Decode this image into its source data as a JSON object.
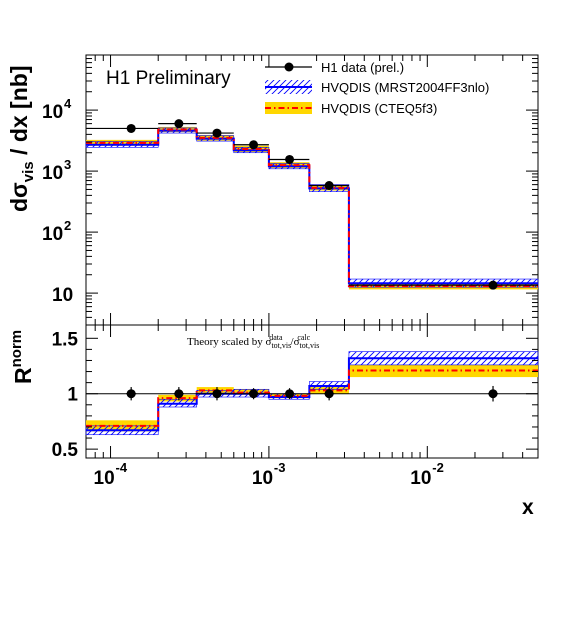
{
  "chart_data": [
    {
      "type": "line",
      "panel": "top",
      "title": "H1 Preliminary",
      "xlabel": "x",
      "ylabel": "dσ_vis / dx [nb]",
      "x_scale": "log",
      "y_scale": "log",
      "xlim": [
        7e-05,
        0.05
      ],
      "ylim": [
        3,
        80000
      ],
      "y_ticks": [
        {
          "value": 10,
          "base": "10",
          "exp": ""
        },
        {
          "value": 100,
          "base": "10",
          "exp": "2"
        },
        {
          "value": 1000,
          "base": "10",
          "exp": "3"
        },
        {
          "value": 10000,
          "base": "10",
          "exp": "4"
        }
      ],
      "bin_edges": [
        7e-05,
        0.0002,
        0.00035,
        0.0006,
        0.001,
        0.0018,
        0.0032,
        0.05
      ],
      "series": [
        {
          "name": "H1 data (prel.)",
          "style": "points",
          "x": [
            0.000135,
            0.00027,
            0.00047,
            0.0008,
            0.00135,
            0.0024,
            0.026
          ],
          "y": [
            5000,
            6000,
            4200,
            2700,
            1550,
            580,
            13.5
          ],
          "yerr": [
            250,
            300,
            210,
            140,
            80,
            30,
            0.8
          ]
        },
        {
          "name": "HVQDIS (MRST2004FF3nlo)",
          "style": "hatched-band",
          "color": "#0000ff",
          "values": [
            2700,
            4600,
            3400,
            2200,
            1200,
            520,
            14.5
          ],
          "band": [
            [
              2450,
              3050
            ],
            [
              4200,
              5100
            ],
            [
              3100,
              3800
            ],
            [
              2000,
              2450
            ],
            [
              1090,
              1330
            ],
            [
              460,
              600
            ],
            [
              12.5,
              17
            ]
          ]
        },
        {
          "name": "HVQDIS (CTEQ5f3)",
          "style": "filled-band",
          "color": "#ffd700",
          "line_color": "#ff0000",
          "values": [
            2900,
            4800,
            3500,
            2300,
            1250,
            530,
            13
          ],
          "band": [
            [
              2600,
              3250
            ],
            [
              4350,
              5300
            ],
            [
              3150,
              3900
            ],
            [
              2050,
              2600
            ],
            [
              1120,
              1400
            ],
            [
              480,
              600
            ],
            [
              11.5,
              14.5
            ]
          ]
        }
      ],
      "legend_position": "top-right"
    },
    {
      "type": "line",
      "panel": "bottom",
      "ylabel": "R norm",
      "annotation": "Theory scaled by σ data tot,vis / σ calc tot,vis",
      "x_scale": "log",
      "xlim": [
        7e-05,
        0.05
      ],
      "ylim": [
        0.42,
        1.62
      ],
      "y_ticks": [
        0.5,
        1,
        1.5
      ],
      "x_ticks": [
        {
          "value": 0.0001,
          "base": "10",
          "exp": "-4"
        },
        {
          "value": 0.001,
          "base": "10",
          "exp": "-3"
        },
        {
          "value": 0.01,
          "base": "10",
          "exp": "-2"
        }
      ],
      "reference_line": 1,
      "bin_edges": [
        7e-05,
        0.0002,
        0.00035,
        0.0006,
        0.001,
        0.0018,
        0.0032,
        0.05
      ],
      "series": [
        {
          "name": "H1 data (prel.)",
          "style": "points",
          "x": [
            0.000135,
            0.00027,
            0.00047,
            0.0008,
            0.00135,
            0.0024,
            0.026
          ],
          "y": [
            1.0,
            1.0,
            1.0,
            1.0,
            1.0,
            1.0,
            1.0
          ],
          "yerr": [
            0.06,
            0.06,
            0.06,
            0.05,
            0.05,
            0.06,
            0.07
          ]
        },
        {
          "name": "HVQDIS (MRST2004FF3nlo)",
          "style": "hatched-band",
          "color": "#0000ff",
          "values": [
            0.67,
            0.91,
            1.0,
            1.0,
            0.97,
            1.07,
            1.32
          ],
          "band": [
            [
              0.63,
              0.71
            ],
            [
              0.88,
              0.95
            ],
            [
              0.97,
              1.03
            ],
            [
              0.97,
              1.04
            ],
            [
              0.95,
              1.0
            ],
            [
              1.04,
              1.11
            ],
            [
              1.26,
              1.38
            ]
          ]
        },
        {
          "name": "HVQDIS (CTEQ5f3)",
          "style": "filled-band",
          "color": "#ffd700",
          "line_color": "#ff0000",
          "values": [
            0.71,
            0.96,
            1.03,
            1.01,
            0.98,
            1.03,
            1.21
          ],
          "band": [
            [
              0.66,
              0.76
            ],
            [
              0.93,
              0.99
            ],
            [
              1.0,
              1.06
            ],
            [
              0.99,
              1.04
            ],
            [
              0.96,
              1.0
            ],
            [
              1.0,
              1.06
            ],
            [
              1.15,
              1.26
            ]
          ]
        }
      ]
    }
  ]
}
